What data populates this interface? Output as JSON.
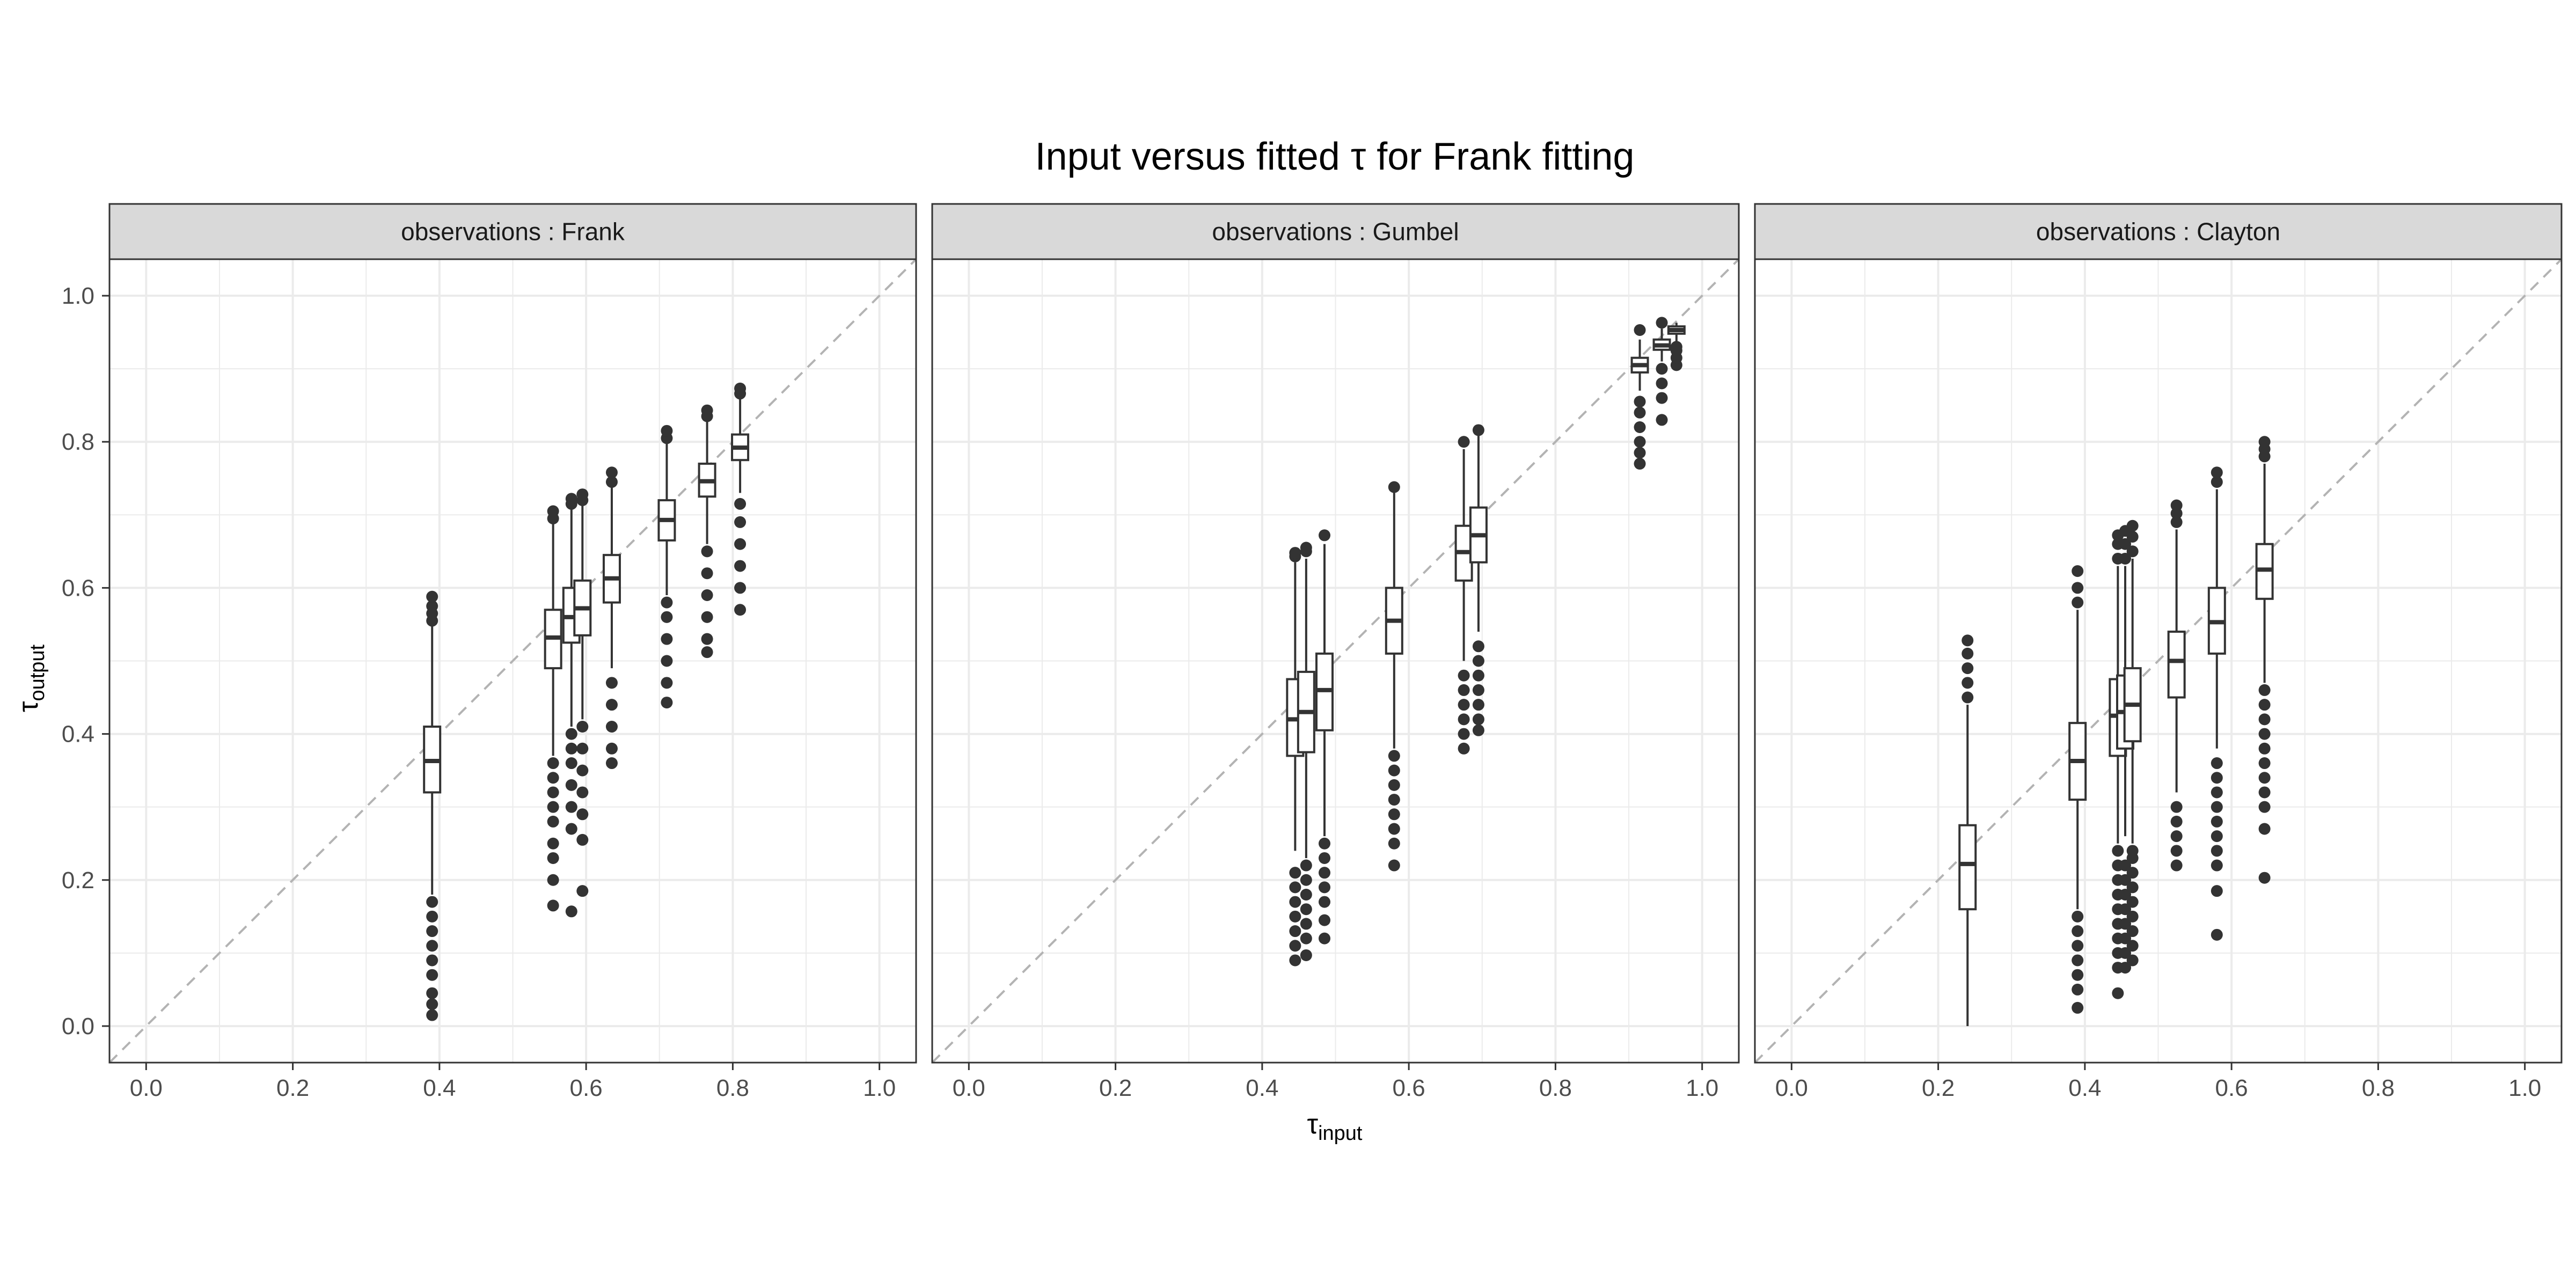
{
  "chart_data": {
    "type": "boxplot",
    "title": "Input versus fitted τ for Frank  fitting",
    "xlabel": {
      "symbol": "τ",
      "subscript": "input"
    },
    "ylabel": {
      "symbol": "τ",
      "subscript": "output"
    },
    "xlim": [
      -0.05,
      1.05
    ],
    "ylim": [
      -0.05,
      1.05
    ],
    "x_ticks": [
      "0.0",
      "0.2",
      "0.4",
      "0.6",
      "0.8",
      "1.0"
    ],
    "y_ticks": [
      "0.0",
      "0.2",
      "0.4",
      "0.6",
      "0.8",
      "1.0"
    ],
    "reference_line": {
      "type": "identity",
      "style": "dashed",
      "color": "#b3b3b3"
    },
    "grid": true,
    "colors": {
      "panel_border": "#333333",
      "strip_fill": "#d9d9d9",
      "grid": "#ebebeb",
      "points": "#333333"
    },
    "panels": [
      {
        "label": "observations : Frank",
        "boxes": [
          {
            "x": 0.39,
            "min": 0.18,
            "q1": 0.32,
            "median": 0.363,
            "q3": 0.41,
            "max": 0.55,
            "outliers": [
              0.015,
              0.03,
              0.045,
              0.07,
              0.09,
              0.11,
              0.13,
              0.15,
              0.17,
              0.555,
              0.565,
              0.575,
              0.588
            ]
          },
          {
            "x": 0.555,
            "min": 0.37,
            "q1": 0.49,
            "median": 0.532,
            "q3": 0.57,
            "max": 0.69,
            "outliers": [
              0.165,
              0.2,
              0.23,
              0.25,
              0.28,
              0.3,
              0.32,
              0.34,
              0.36,
              0.695,
              0.705
            ]
          },
          {
            "x": 0.58,
            "min": 0.41,
            "q1": 0.525,
            "median": 0.56,
            "q3": 0.6,
            "max": 0.71,
            "outliers": [
              0.157,
              0.27,
              0.3,
              0.33,
              0.36,
              0.38,
              0.4,
              0.715,
              0.722
            ]
          },
          {
            "x": 0.595,
            "min": 0.42,
            "q1": 0.535,
            "median": 0.572,
            "q3": 0.61,
            "max": 0.715,
            "outliers": [
              0.185,
              0.255,
              0.29,
              0.32,
              0.35,
              0.38,
              0.41,
              0.72,
              0.728
            ]
          },
          {
            "x": 0.635,
            "min": 0.49,
            "q1": 0.58,
            "median": 0.613,
            "q3": 0.645,
            "max": 0.74,
            "outliers": [
              0.36,
              0.38,
              0.41,
              0.44,
              0.47,
              0.745,
              0.758
            ]
          },
          {
            "x": 0.71,
            "min": 0.59,
            "q1": 0.665,
            "median": 0.693,
            "q3": 0.72,
            "max": 0.8,
            "outliers": [
              0.443,
              0.47,
              0.5,
              0.53,
              0.56,
              0.58,
              0.805,
              0.815
            ]
          },
          {
            "x": 0.765,
            "min": 0.66,
            "q1": 0.725,
            "median": 0.746,
            "q3": 0.77,
            "max": 0.83,
            "outliers": [
              0.512,
              0.53,
              0.56,
              0.59,
              0.62,
              0.65,
              0.835,
              0.843
            ]
          },
          {
            "x": 0.81,
            "min": 0.73,
            "q1": 0.775,
            "median": 0.792,
            "q3": 0.81,
            "max": 0.862,
            "outliers": [
              0.57,
              0.6,
              0.63,
              0.66,
              0.69,
              0.715,
              0.866,
              0.873
            ]
          }
        ]
      },
      {
        "label": "observations : Gumbel",
        "boxes": [
          {
            "x": 0.445,
            "min": 0.24,
            "q1": 0.37,
            "median": 0.42,
            "q3": 0.475,
            "max": 0.635,
            "outliers": [
              0.09,
              0.11,
              0.13,
              0.15,
              0.17,
              0.19,
              0.21,
              0.643,
              0.648
            ]
          },
          {
            "x": 0.46,
            "min": 0.23,
            "q1": 0.375,
            "median": 0.43,
            "q3": 0.485,
            "max": 0.64,
            "outliers": [
              0.097,
              0.12,
              0.14,
              0.16,
              0.18,
              0.2,
              0.22,
              0.65,
              0.655
            ]
          },
          {
            "x": 0.485,
            "min": 0.26,
            "q1": 0.405,
            "median": 0.46,
            "q3": 0.51,
            "max": 0.66,
            "outliers": [
              0.12,
              0.145,
              0.17,
              0.19,
              0.21,
              0.23,
              0.25,
              0.672
            ]
          },
          {
            "x": 0.58,
            "min": 0.38,
            "q1": 0.51,
            "median": 0.555,
            "q3": 0.6,
            "max": 0.73,
            "outliers": [
              0.22,
              0.25,
              0.27,
              0.29,
              0.31,
              0.33,
              0.35,
              0.37,
              0.738
            ]
          },
          {
            "x": 0.675,
            "min": 0.5,
            "q1": 0.61,
            "median": 0.649,
            "q3": 0.685,
            "max": 0.79,
            "outliers": [
              0.38,
              0.4,
              0.42,
              0.44,
              0.46,
              0.48,
              0.8
            ]
          },
          {
            "x": 0.695,
            "min": 0.54,
            "q1": 0.635,
            "median": 0.672,
            "q3": 0.71,
            "max": 0.81,
            "outliers": [
              0.405,
              0.42,
              0.44,
              0.46,
              0.48,
              0.5,
              0.52,
              0.816
            ]
          },
          {
            "x": 0.915,
            "min": 0.87,
            "q1": 0.895,
            "median": 0.905,
            "q3": 0.915,
            "max": 0.94,
            "outliers": [
              0.77,
              0.785,
              0.8,
              0.82,
              0.84,
              0.855,
              0.953
            ]
          },
          {
            "x": 0.945,
            "min": 0.91,
            "q1": 0.926,
            "median": 0.932,
            "q3": 0.94,
            "max": 0.955,
            "outliers": [
              0.83,
              0.86,
              0.88,
              0.9,
              0.963
            ]
          },
          {
            "x": 0.965,
            "min": 0.935,
            "q1": 0.948,
            "median": 0.953,
            "q3": 0.958,
            "max": 0.963,
            "outliers": [
              0.905,
              0.915,
              0.925,
              0.93
            ]
          }
        ]
      },
      {
        "label": "observations : Clayton",
        "boxes": [
          {
            "x": 0.24,
            "min": 0.0,
            "q1": 0.16,
            "median": 0.222,
            "q3": 0.275,
            "max": 0.44,
            "outliers": [
              0.45,
              0.47,
              0.49,
              0.51,
              0.528
            ]
          },
          {
            "x": 0.39,
            "min": 0.16,
            "q1": 0.31,
            "median": 0.363,
            "q3": 0.415,
            "max": 0.57,
            "outliers": [
              0.025,
              0.05,
              0.07,
              0.09,
              0.11,
              0.13,
              0.15,
              0.58,
              0.6,
              0.623
            ]
          },
          {
            "x": 0.445,
            "min": 0.25,
            "q1": 0.37,
            "median": 0.425,
            "q3": 0.475,
            "max": 0.63,
            "outliers": [
              0.045,
              0.08,
              0.1,
              0.12,
              0.14,
              0.16,
              0.18,
              0.2,
              0.22,
              0.24,
              0.64,
              0.66,
              0.672
            ]
          },
          {
            "x": 0.455,
            "min": 0.26,
            "q1": 0.38,
            "median": 0.43,
            "q3": 0.48,
            "max": 0.63,
            "outliers": [
              0.08,
              0.1,
              0.12,
              0.14,
              0.16,
              0.18,
              0.2,
              0.22,
              0.64,
              0.66,
              0.678
            ]
          },
          {
            "x": 0.465,
            "min": 0.25,
            "q1": 0.39,
            "median": 0.44,
            "q3": 0.49,
            "max": 0.64,
            "outliers": [
              0.09,
              0.11,
              0.13,
              0.15,
              0.17,
              0.19,
              0.21,
              0.23,
              0.24,
              0.65,
              0.67,
              0.685
            ]
          },
          {
            "x": 0.525,
            "min": 0.32,
            "q1": 0.45,
            "median": 0.5,
            "q3": 0.54,
            "max": 0.68,
            "outliers": [
              0.22,
              0.24,
              0.26,
              0.28,
              0.3,
              0.69,
              0.702,
              0.713
            ]
          },
          {
            "x": 0.58,
            "min": 0.38,
            "q1": 0.51,
            "median": 0.553,
            "q3": 0.6,
            "max": 0.735,
            "outliers": [
              0.125,
              0.185,
              0.22,
              0.24,
              0.26,
              0.28,
              0.3,
              0.32,
              0.34,
              0.36,
              0.745,
              0.758
            ]
          },
          {
            "x": 0.645,
            "min": 0.47,
            "q1": 0.585,
            "median": 0.625,
            "q3": 0.66,
            "max": 0.77,
            "outliers": [
              0.203,
              0.27,
              0.3,
              0.32,
              0.34,
              0.36,
              0.38,
              0.4,
              0.42,
              0.44,
              0.46,
              0.78,
              0.79,
              0.8
            ]
          }
        ]
      }
    ]
  }
}
